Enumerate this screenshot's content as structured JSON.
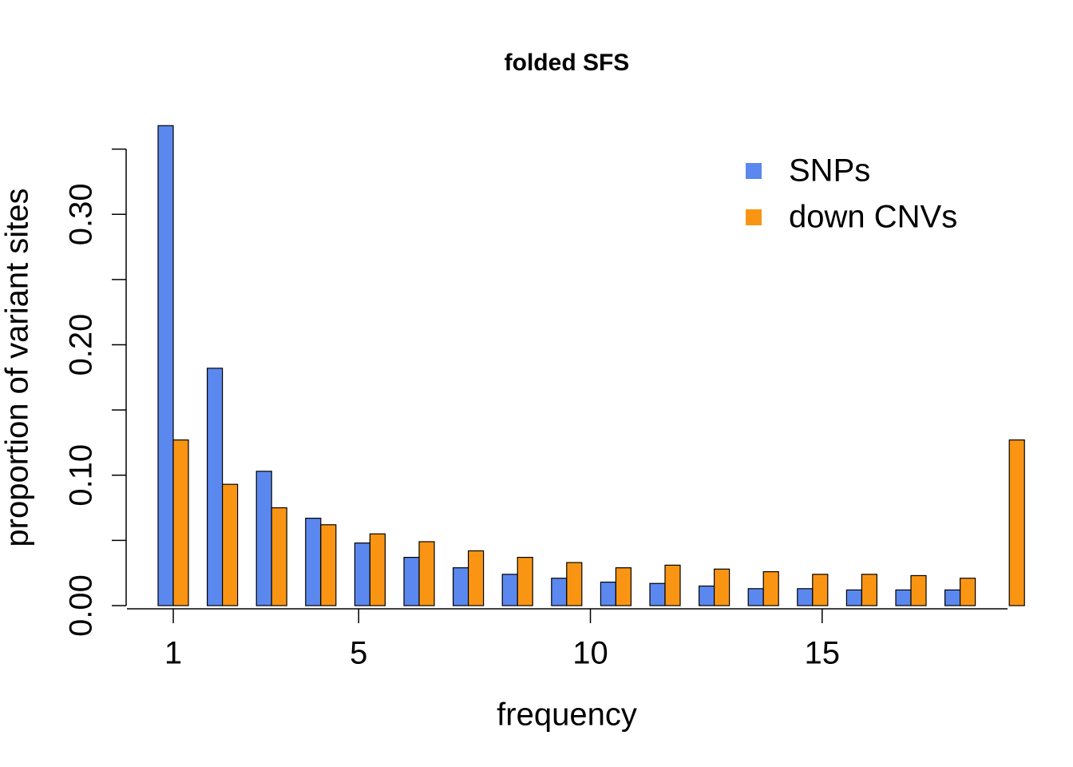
{
  "chart_data": {
    "type": "bar",
    "title": "folded SFS",
    "x_label": "frequency",
    "y_label": "proportion of variant sites",
    "series": [
      {
        "name": "SNPs",
        "color": "#5b88ee",
        "values": [
          0.368,
          0.182,
          0.103,
          0.067,
          0.048,
          0.037,
          0.029,
          0.024,
          0.021,
          0.018,
          0.017,
          0.015,
          0.013,
          0.013,
          0.012,
          0.012,
          0.012
        ]
      },
      {
        "name": "down CNVs",
        "color": "#fa9514",
        "values": [
          0.127,
          0.093,
          0.075,
          0.062,
          0.055,
          0.049,
          0.042,
          0.037,
          0.033,
          0.029,
          0.031,
          0.028,
          0.026,
          0.024,
          0.024,
          0.023,
          0.021,
          0.127
        ]
      }
    ],
    "ylim": [
      0,
      0.37
    ],
    "yticks": [
      {
        "value": 0,
        "label": "0.00"
      },
      {
        "value": 0.1,
        "label": "0.10"
      },
      {
        "value": 0.2,
        "label": "0.20"
      },
      {
        "value": 0.3,
        "label": "0.30"
      }
    ],
    "minor_yticks": [
      0.05,
      0.15,
      0.25,
      0.35
    ],
    "xlim": [
      0,
      19
    ],
    "xticks": [
      1,
      5,
      10,
      15
    ],
    "legend": "top-right"
  }
}
